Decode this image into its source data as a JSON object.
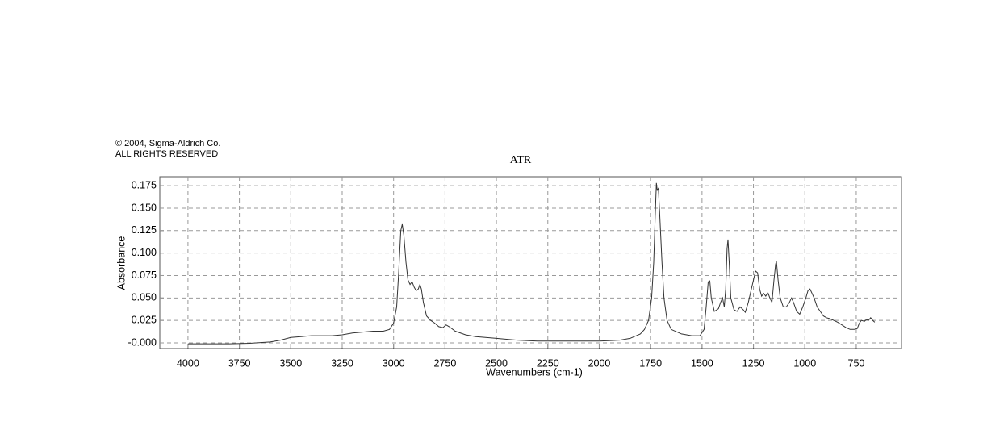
{
  "chart_data": {
    "type": "line",
    "copyright": [
      "© 2004, Sigma-Aldrich Co.",
      "ALL RIGHTS RESERVED"
    ],
    "title": "ATR",
    "x_label": "Wavenumbers (cm-1)",
    "y_label": "Absorbance",
    "xlim": [
      4137,
      530
    ],
    "ylim": [
      -0.0063,
      0.185
    ],
    "xticks": [
      4000,
      3750,
      3500,
      3250,
      3000,
      2750,
      2500,
      2250,
      2000,
      1750,
      1500,
      1250,
      1000,
      750
    ],
    "yticks": [
      {
        "value": 0,
        "label": "-0.000"
      },
      {
        "value": 0.025,
        "label": "0.025"
      },
      {
        "value": 0.05,
        "label": "0.050"
      },
      {
        "value": 0.075,
        "label": "0.075"
      },
      {
        "value": 0.1,
        "label": "0.100"
      },
      {
        "value": 0.125,
        "label": "0.125"
      },
      {
        "value": 0.15,
        "label": "0.150"
      },
      {
        "value": 0.175,
        "label": "0.175"
      }
    ],
    "grid": true,
    "color": "#333333",
    "x": [
      4000,
      3900,
      3800,
      3700,
      3600,
      3550,
      3500,
      3450,
      3400,
      3350,
      3300,
      3250,
      3200,
      3150,
      3100,
      3050,
      3020,
      3000,
      2985,
      2975,
      2965,
      2958,
      2950,
      2940,
      2930,
      2920,
      2910,
      2900,
      2890,
      2880,
      2872,
      2865,
      2855,
      2840,
      2820,
      2800,
      2780,
      2760,
      2745,
      2730,
      2700,
      2650,
      2600,
      2500,
      2400,
      2300,
      2200,
      2100,
      2000,
      1900,
      1850,
      1800,
      1780,
      1760,
      1745,
      1735,
      1728,
      1722,
      1718,
      1712,
      1705,
      1695,
      1685,
      1670,
      1650,
      1600,
      1550,
      1510,
      1490,
      1480,
      1470,
      1462,
      1455,
      1440,
      1420,
      1410,
      1400,
      1392,
      1385,
      1378,
      1374,
      1368,
      1360,
      1345,
      1330,
      1315,
      1300,
      1290,
      1275,
      1260,
      1250,
      1240,
      1230,
      1220,
      1210,
      1200,
      1190,
      1180,
      1170,
      1160,
      1150,
      1142,
      1138,
      1130,
      1120,
      1105,
      1090,
      1075,
      1065,
      1055,
      1040,
      1025,
      1010,
      995,
      985,
      975,
      965,
      955,
      940,
      925,
      910,
      895,
      880,
      860,
      840,
      820,
      800,
      780,
      760,
      745,
      735,
      725,
      710,
      700,
      690,
      680,
      670,
      660
    ],
    "values": [
      -0.001,
      -0.001,
      -0.001,
      -0.0005,
      0.001,
      0.003,
      0.006,
      0.007,
      0.008,
      0.008,
      0.008,
      0.009,
      0.011,
      0.012,
      0.013,
      0.013,
      0.015,
      0.022,
      0.04,
      0.08,
      0.125,
      0.132,
      0.12,
      0.09,
      0.07,
      0.065,
      0.068,
      0.062,
      0.058,
      0.06,
      0.065,
      0.06,
      0.045,
      0.03,
      0.025,
      0.022,
      0.018,
      0.017,
      0.02,
      0.018,
      0.013,
      0.009,
      0.007,
      0.005,
      0.003,
      0.002,
      0.002,
      0.002,
      0.002,
      0.003,
      0.005,
      0.01,
      0.015,
      0.025,
      0.05,
      0.09,
      0.14,
      0.178,
      0.17,
      0.172,
      0.14,
      0.09,
      0.05,
      0.025,
      0.015,
      0.01,
      0.008,
      0.008,
      0.015,
      0.04,
      0.068,
      0.069,
      0.05,
      0.035,
      0.038,
      0.045,
      0.05,
      0.04,
      0.06,
      0.105,
      0.115,
      0.09,
      0.05,
      0.037,
      0.035,
      0.04,
      0.037,
      0.034,
      0.045,
      0.06,
      0.07,
      0.08,
      0.078,
      0.06,
      0.052,
      0.055,
      0.052,
      0.056,
      0.05,
      0.045,
      0.07,
      0.088,
      0.09,
      0.07,
      0.05,
      0.04,
      0.04,
      0.045,
      0.05,
      0.045,
      0.035,
      0.032,
      0.04,
      0.05,
      0.058,
      0.06,
      0.055,
      0.05,
      0.04,
      0.035,
      0.03,
      0.028,
      0.027,
      0.025,
      0.023,
      0.02,
      0.017,
      0.015,
      0.015,
      0.016,
      0.022,
      0.025,
      0.024,
      0.026,
      0.025,
      0.028,
      0.025,
      0.023
    ]
  }
}
